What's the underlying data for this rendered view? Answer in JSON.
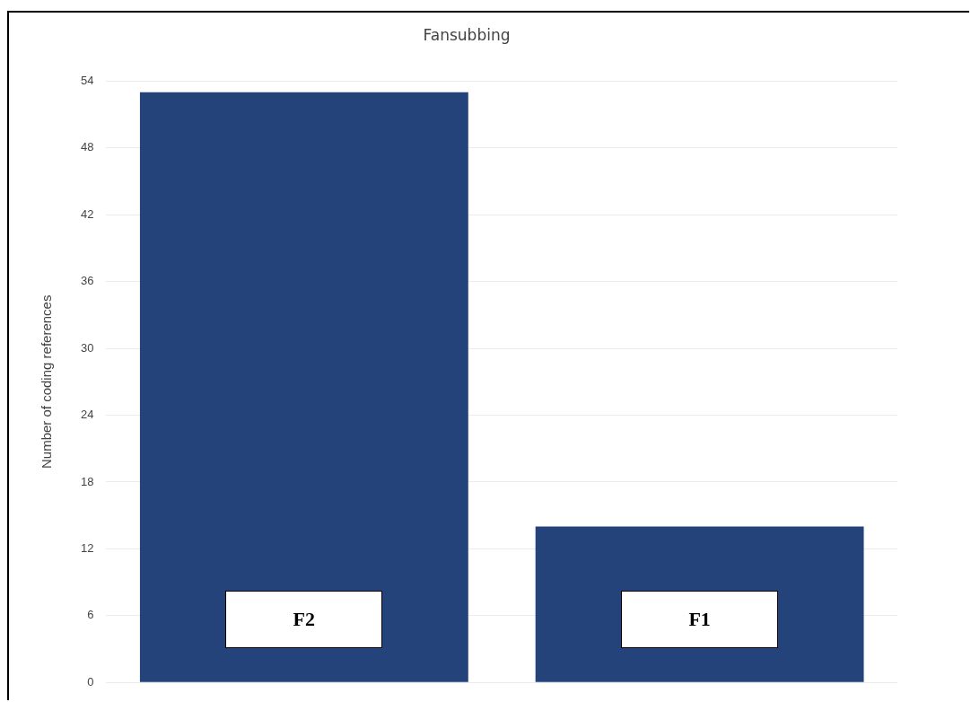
{
  "chart_data": {
    "type": "bar",
    "title": "Fansubbing",
    "ylabel": "Number of coding references",
    "categories": [
      "F2",
      "F1"
    ],
    "values": [
      53,
      14
    ],
    "color": "#24437a",
    "ylim": [
      0,
      54
    ],
    "yticks": [
      0,
      6,
      12,
      18,
      24,
      30,
      36,
      42,
      48,
      54
    ],
    "grid": "y",
    "legend": false
  }
}
